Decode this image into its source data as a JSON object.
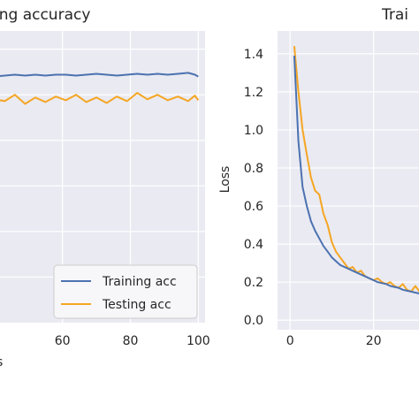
{
  "chart_data": [
    {
      "type": "line",
      "title": "ing accuracy",
      "xlabel": "s",
      "ylabel": "",
      "xlim": [
        39,
        102
      ],
      "x_ticks": [
        60,
        80,
        100
      ],
      "grid": true,
      "legend_position": "bottom-right",
      "series": [
        {
          "name": "Training acc",
          "color": "#4c72b0",
          "x": [
            40,
            43,
            46,
            49,
            52,
            55,
            58,
            61,
            64,
            67,
            70,
            73,
            76,
            79,
            82,
            85,
            88,
            91,
            94,
            97,
            99,
            100
          ],
          "y": [
            0.92,
            0.921,
            0.922,
            0.921,
            0.922,
            0.921,
            0.922,
            0.922,
            0.921,
            0.922,
            0.923,
            0.922,
            0.921,
            0.922,
            0.923,
            0.922,
            0.923,
            0.922,
            0.923,
            0.924,
            0.922,
            0.92
          ]
        },
        {
          "name": "Testing acc",
          "color": "#f5a623",
          "x": [
            40,
            43,
            46,
            49,
            52,
            55,
            58,
            61,
            64,
            67,
            70,
            73,
            76,
            79,
            82,
            85,
            88,
            91,
            94,
            97,
            99,
            100
          ],
          "y": [
            0.895,
            0.893,
            0.9,
            0.89,
            0.897,
            0.892,
            0.898,
            0.894,
            0.9,
            0.892,
            0.897,
            0.891,
            0.898,
            0.893,
            0.902,
            0.895,
            0.9,
            0.894,
            0.898,
            0.893,
            0.899,
            0.894
          ]
        }
      ]
    },
    {
      "type": "line",
      "title": "Trai",
      "xlabel": "",
      "ylabel": "Loss",
      "xlim": [
        -3,
        33
      ],
      "ylim": [
        -0.05,
        1.52
      ],
      "x_ticks": [
        0,
        20
      ],
      "y_ticks": [
        0.0,
        0.2,
        0.4,
        0.6,
        0.8,
        1.0,
        1.2,
        1.4
      ],
      "y_tick_labels": [
        "0.0",
        "0.2",
        "0.4",
        "0.6",
        "0.8",
        "1.0",
        "1.2",
        "1.4"
      ],
      "grid": true,
      "series": [
        {
          "name": "Training acc",
          "color": "#4c72b0",
          "x": [
            1,
            2,
            3,
            4,
            5,
            6,
            7,
            8,
            9,
            10,
            11,
            12,
            13,
            14,
            15,
            16,
            17,
            18,
            19,
            20,
            21,
            22,
            23,
            24,
            25,
            26,
            27,
            28,
            29,
            30,
            31,
            32
          ],
          "y": [
            1.39,
            0.94,
            0.7,
            0.6,
            0.52,
            0.47,
            0.43,
            0.39,
            0.36,
            0.33,
            0.31,
            0.29,
            0.28,
            0.27,
            0.26,
            0.25,
            0.24,
            0.23,
            0.22,
            0.21,
            0.2,
            0.195,
            0.19,
            0.18,
            0.175,
            0.17,
            0.16,
            0.155,
            0.15,
            0.145,
            0.14,
            0.135
          ]
        },
        {
          "name": "Testing acc",
          "color": "#f5a623",
          "x": [
            1,
            2,
            3,
            4,
            5,
            6,
            7,
            8,
            9,
            10,
            11,
            12,
            13,
            14,
            15,
            16,
            17,
            18,
            19,
            20,
            21,
            22,
            23,
            24,
            25,
            26,
            27,
            28,
            29,
            30,
            31,
            32
          ],
          "y": [
            1.44,
            1.2,
            1.0,
            0.87,
            0.75,
            0.68,
            0.66,
            0.56,
            0.5,
            0.41,
            0.36,
            0.33,
            0.3,
            0.27,
            0.28,
            0.25,
            0.26,
            0.23,
            0.22,
            0.21,
            0.22,
            0.2,
            0.19,
            0.2,
            0.18,
            0.17,
            0.19,
            0.16,
            0.15,
            0.18,
            0.15,
            0.14
          ]
        }
      ]
    }
  ]
}
